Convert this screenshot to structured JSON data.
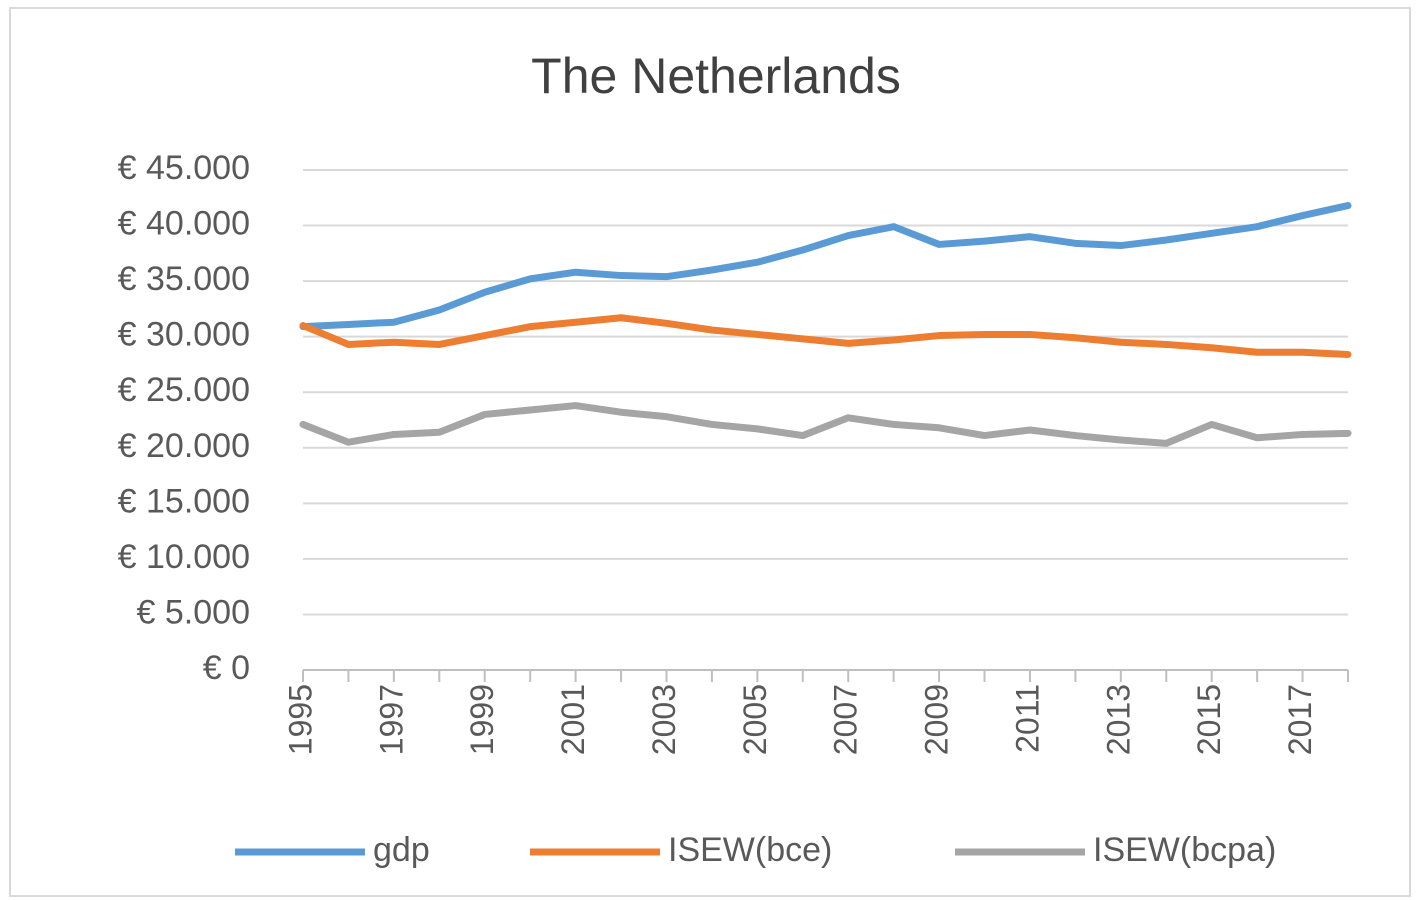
{
  "chart_data": {
    "type": "line",
    "title": "The Netherlands",
    "categories": [
      "1995",
      null,
      "1997",
      null,
      "1999",
      null,
      "2001",
      null,
      "2003",
      null,
      "2005",
      null,
      "2007",
      null,
      "2009",
      null,
      "2011",
      null,
      "2013",
      null,
      "2015",
      null,
      "2017",
      null
    ],
    "series": [
      {
        "name": "gdp",
        "color": "#5b9bd5",
        "values": [
          30900,
          31100,
          31300,
          32400,
          34000,
          35200,
          35800,
          35500,
          35400,
          36000,
          36700,
          37800,
          39100,
          39900,
          38300,
          38600,
          39000,
          38400,
          38200,
          38700,
          39300,
          39900,
          40900,
          41800
        ]
      },
      {
        "name": "ISEW(bce)",
        "color": "#ed7d31",
        "values": [
          31000,
          29300,
          29500,
          29300,
          30100,
          30900,
          31300,
          31700,
          31200,
          30600,
          30200,
          29800,
          29400,
          29700,
          30100,
          30200,
          30200,
          29900,
          29500,
          29300,
          29000,
          28600,
          28600,
          28400
        ]
      },
      {
        "name": "ISEW(bcpa)",
        "color": "#a5a5a5",
        "values": [
          22100,
          20500,
          21200,
          21400,
          23000,
          23400,
          23800,
          23200,
          22800,
          22100,
          21700,
          21100,
          22700,
          22100,
          21800,
          21100,
          21600,
          21100,
          20700,
          20400,
          22100,
          20900,
          21200,
          21300
        ]
      }
    ],
    "ylim": [
      0,
      45000
    ],
    "yticks": [
      {
        "value": 0,
        "label": "€ 0"
      },
      {
        "value": 5000,
        "label": "€ 5.000"
      },
      {
        "value": 10000,
        "label": "€ 10.000"
      },
      {
        "value": 15000,
        "label": "€ 15.000"
      },
      {
        "value": 20000,
        "label": "€ 20.000"
      },
      {
        "value": 25000,
        "label": "€ 25.000"
      },
      {
        "value": 30000,
        "label": "€ 30.000"
      },
      {
        "value": 35000,
        "label": "€ 35.000"
      },
      {
        "value": 40000,
        "label": "€ 40.000"
      },
      {
        "value": 45000,
        "label": "€ 45.000"
      }
    ],
    "grid": true,
    "legend": "bottom"
  }
}
